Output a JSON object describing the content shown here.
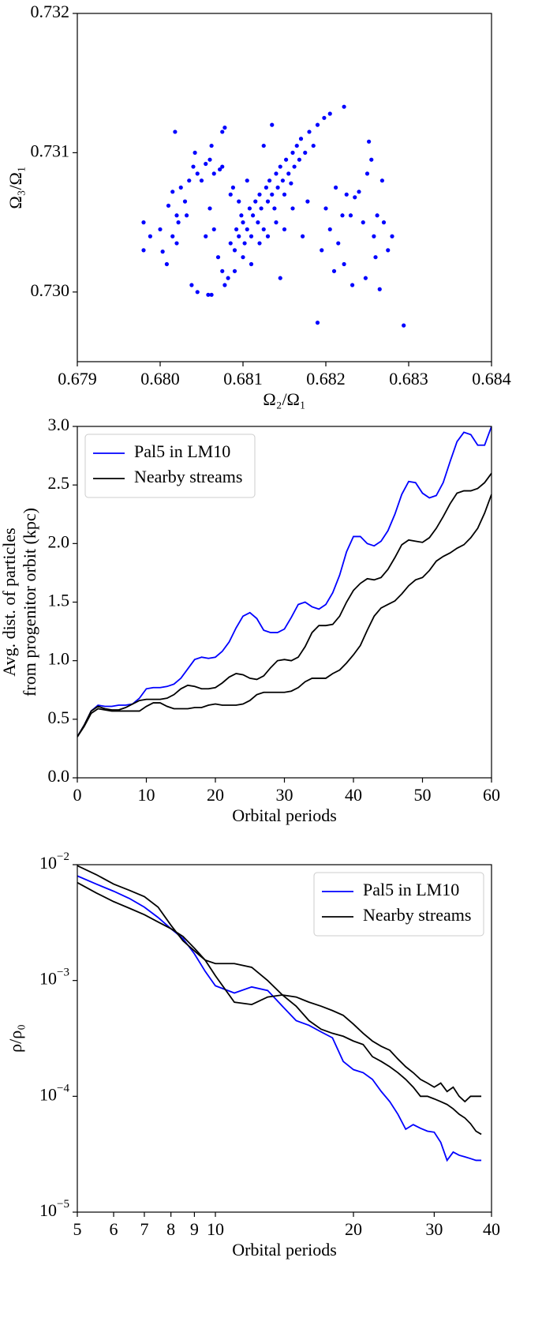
{
  "chart_data": [
    {
      "type": "scatter",
      "xlabel": "Ω₂/Ω₁",
      "ylabel": "Ω₃/Ω₁",
      "color": "#0000ff",
      "xlim": [
        0.679,
        0.684
      ],
      "ylim": [
        0.7295,
        0.732
      ],
      "xticks": [
        0.679,
        {
          "value": 0.68,
          "label": "0.680"
        },
        0.681,
        0.682,
        0.683,
        0.684
      ],
      "yticks": [
        {
          "value": 0.73,
          "label": "0.730"
        },
        0.731,
        0.732
      ],
      "x": [
        0.6798,
        0.6798,
        0.67988,
        0.68003,
        0.68008,
        0.68,
        0.6801,
        0.68015,
        0.68018,
        0.6802,
        0.68022,
        0.68025,
        0.6803,
        0.68035,
        0.6804,
        0.68042,
        0.68045,
        0.6805,
        0.68055,
        0.6806,
        0.68062,
        0.68065,
        0.68072,
        0.68078,
        0.68075,
        0.68038,
        0.68045,
        0.68058,
        0.68062,
        0.68015,
        0.6802,
        0.68032,
        0.6807,
        0.68075,
        0.68078,
        0.68082,
        0.68085,
        0.6809,
        0.68092,
        0.68095,
        0.68098,
        0.681,
        0.68102,
        0.68105,
        0.68108,
        0.6811,
        0.68112,
        0.68115,
        0.68118,
        0.6812,
        0.68122,
        0.68125,
        0.68128,
        0.6813,
        0.68132,
        0.68135,
        0.68138,
        0.6814,
        0.68142,
        0.68145,
        0.68148,
        0.6815,
        0.68152,
        0.68155,
        0.68158,
        0.6816,
        0.68162,
        0.68165,
        0.68168,
        0.6817,
        0.68175,
        0.6818,
        0.68185,
        0.6819,
        0.68198,
        0.68205,
        0.68222,
        0.68095,
        0.68088,
        0.68105,
        0.6812,
        0.6813,
        0.6814,
        0.681,
        0.6811,
        0.68125,
        0.68135,
        0.6815,
        0.6816,
        0.68172,
        0.68178,
        0.68145,
        0.6809,
        0.6806,
        0.68055,
        0.68065,
        0.68085,
        0.68075,
        0.6819,
        0.68195,
        0.682,
        0.68205,
        0.6821,
        0.68215,
        0.6822,
        0.68225,
        0.6823,
        0.68235,
        0.6824,
        0.68245,
        0.68248,
        0.6825,
        0.68252,
        0.68255,
        0.68258,
        0.6826,
        0.68262,
        0.68265,
        0.68268,
        0.6827,
        0.68275,
        0.6828,
        0.68212,
        0.68222,
        0.68232,
        0.68294
      ],
      "y": [
        0.7305,
        0.7303,
        0.7304,
        0.73029,
        0.7302,
        0.73045,
        0.73062,
        0.73072,
        0.73115,
        0.73055,
        0.7305,
        0.73075,
        0.73065,
        0.7308,
        0.7309,
        0.731,
        0.73085,
        0.7308,
        0.73092,
        0.73095,
        0.73105,
        0.73085,
        0.73088,
        0.73118,
        0.73115,
        0.73005,
        0.73,
        0.72998,
        0.72998,
        0.7304,
        0.73035,
        0.73055,
        0.73025,
        0.73015,
        0.73005,
        0.7301,
        0.73035,
        0.7303,
        0.73045,
        0.7304,
        0.73055,
        0.7305,
        0.73035,
        0.73045,
        0.7306,
        0.7304,
        0.73055,
        0.73065,
        0.7305,
        0.7307,
        0.7306,
        0.73045,
        0.73075,
        0.73065,
        0.7308,
        0.7307,
        0.7306,
        0.73085,
        0.73075,
        0.7309,
        0.7308,
        0.7307,
        0.73095,
        0.73085,
        0.73078,
        0.731,
        0.7309,
        0.73105,
        0.73095,
        0.7311,
        0.731,
        0.73115,
        0.73105,
        0.7312,
        0.73125,
        0.73128,
        0.73133,
        0.73065,
        0.73075,
        0.7308,
        0.73035,
        0.7304,
        0.7305,
        0.73025,
        0.7302,
        0.73105,
        0.7312,
        0.73045,
        0.7306,
        0.7304,
        0.73065,
        0.7301,
        0.73015,
        0.7306,
        0.7304,
        0.73045,
        0.7307,
        0.7309,
        0.72978,
        0.7303,
        0.7306,
        0.73045,
        0.73015,
        0.73035,
        0.73055,
        0.7307,
        0.73055,
        0.73068,
        0.73072,
        0.7305,
        0.7301,
        0.73085,
        0.73108,
        0.73095,
        0.7304,
        0.73025,
        0.73055,
        0.73002,
        0.7308,
        0.7305,
        0.7303,
        0.7304,
        0.73075,
        0.7302,
        0.73005,
        0.72976
      ]
    },
    {
      "type": "line",
      "xlabel": "Orbital periods",
      "ylabel": [
        "Avg. dist. of particles",
        "from progenitor orbit (kpc)"
      ],
      "legend": "upper left",
      "xlim": [
        0,
        60
      ],
      "ylim": [
        0,
        3
      ],
      "xticks": [
        0,
        10,
        20,
        30,
        40,
        50,
        60
      ],
      "yticks": [
        {
          "value": 0,
          "label": "0.0"
        },
        0.5,
        {
          "value": 1,
          "label": "1.0"
        },
        1.5,
        {
          "value": 2,
          "label": "2.0"
        },
        2.5,
        {
          "value": 3,
          "label": "3.0"
        }
      ],
      "x": [
        0,
        1,
        2,
        3,
        4,
        5,
        6,
        7,
        8,
        9,
        10,
        11,
        12,
        13,
        14,
        15,
        16,
        17,
        18,
        19,
        20,
        21,
        22,
        23,
        24,
        25,
        26,
        27,
        28,
        29,
        30,
        31,
        32,
        33,
        34,
        35,
        36,
        37,
        38,
        39,
        40,
        41,
        42,
        43,
        44,
        45,
        46,
        47,
        48,
        49,
        50,
        51,
        52,
        53,
        54,
        55,
        56,
        57,
        58,
        59,
        60
      ],
      "series": [
        {
          "name": "Pal5 in LM10",
          "color": "#0000ff",
          "values": [
            0.35,
            0.45,
            0.57,
            0.62,
            0.61,
            0.61,
            0.62,
            0.62,
            0.63,
            0.68,
            0.76,
            0.77,
            0.77,
            0.78,
            0.8,
            0.85,
            0.93,
            1.01,
            1.03,
            1.02,
            1.03,
            1.08,
            1.16,
            1.28,
            1.38,
            1.41,
            1.36,
            1.26,
            1.24,
            1.24,
            1.27,
            1.37,
            1.48,
            1.5,
            1.46,
            1.44,
            1.48,
            1.58,
            1.73,
            1.93,
            2.06,
            2.06,
            2.0,
            1.98,
            2.02,
            2.11,
            2.25,
            2.42,
            2.53,
            2.52,
            2.43,
            2.39,
            2.41,
            2.52,
            2.7,
            2.87,
            2.95,
            2.93,
            2.84,
            2.84,
            3.0
          ]
        },
        {
          "name": "Nearby streams",
          "color": "#000000",
          "values": [
            0.35,
            0.45,
            0.57,
            0.61,
            0.59,
            0.58,
            0.58,
            0.6,
            0.63,
            0.66,
            0.67,
            0.67,
            0.67,
            0.68,
            0.71,
            0.76,
            0.79,
            0.78,
            0.76,
            0.76,
            0.77,
            0.81,
            0.86,
            0.89,
            0.88,
            0.85,
            0.84,
            0.87,
            0.94,
            1.0,
            1.01,
            1.0,
            1.03,
            1.12,
            1.24,
            1.3,
            1.3,
            1.31,
            1.38,
            1.5,
            1.6,
            1.66,
            1.7,
            1.69,
            1.71,
            1.78,
            1.88,
            1.99,
            2.03,
            2.02,
            2.01,
            2.05,
            2.13,
            2.23,
            2.34,
            2.43,
            2.45,
            2.45,
            2.47,
            2.52,
            2.6
          ]
        },
        {
          "color": "#000000",
          "values": [
            0.35,
            0.44,
            0.55,
            0.59,
            0.58,
            0.57,
            0.57,
            0.57,
            0.57,
            0.57,
            0.61,
            0.64,
            0.64,
            0.61,
            0.59,
            0.59,
            0.59,
            0.6,
            0.6,
            0.62,
            0.63,
            0.62,
            0.62,
            0.62,
            0.63,
            0.66,
            0.71,
            0.73,
            0.73,
            0.73,
            0.73,
            0.74,
            0.77,
            0.82,
            0.85,
            0.85,
            0.85,
            0.89,
            0.92,
            0.98,
            1.05,
            1.13,
            1.26,
            1.38,
            1.45,
            1.48,
            1.51,
            1.57,
            1.64,
            1.69,
            1.71,
            1.77,
            1.85,
            1.89,
            1.92,
            1.96,
            1.99,
            2.05,
            2.13,
            2.26,
            2.42
          ]
        }
      ]
    },
    {
      "type": "line",
      "xlabel": "Orbital periods",
      "ylabel": "ρ/ρ₀",
      "legend": "upper right",
      "xscale": "log",
      "yscale": "log",
      "xlim": [
        5,
        40
      ],
      "ylim": [
        1e-05,
        0.01
      ],
      "xticks": [
        5,
        6,
        7,
        8,
        9,
        10,
        20,
        30,
        40
      ],
      "yticks": [
        {
          "value": 1e-05,
          "label": "10",
          "exponent": "−5"
        },
        {
          "value": 0.0001,
          "label": "10",
          "exponent": "−4"
        },
        {
          "value": 0.001,
          "label": "10",
          "exponent": "−3"
        },
        {
          "value": 0.01,
          "label": "10",
          "exponent": "−2"
        }
      ],
      "x": [
        5,
        5.5,
        6,
        6.5,
        7,
        7.5,
        8,
        8.5,
        9,
        9.5,
        10,
        11,
        12,
        13,
        14,
        15,
        16,
        17,
        18,
        19,
        20,
        21,
        22,
        23,
        24,
        25,
        26,
        27,
        28,
        29,
        30,
        31,
        32,
        33,
        34,
        35,
        36,
        37,
        38
      ],
      "series": [
        {
          "name": "Pal5 in LM10",
          "color": "#0000ff",
          "values": [
            0.008,
            0.0068,
            0.0059,
            0.0051,
            0.0043,
            0.0035,
            0.0028,
            0.0023,
            0.0017,
            0.0012,
            0.0009,
            0.00078,
            0.00088,
            0.00082,
            0.0006,
            0.00045,
            0.00041,
            0.00036,
            0.00032,
            0.0002,
            0.00017,
            0.00016,
            0.00014,
            0.00011,
            9e-05,
            7e-05,
            5.2e-05,
            5.7e-05,
            5.3e-05,
            5e-05,
            4.9e-05,
            4e-05,
            2.8e-05,
            3.3e-05,
            3.1e-05,
            3e-05,
            2.9e-05,
            2.8e-05,
            2.8e-05
          ]
        },
        {
          "name": "Nearby streams",
          "color": "#000000",
          "values": [
            0.0098,
            0.0082,
            0.0068,
            0.006,
            0.0053,
            0.0043,
            0.003,
            0.0022,
            0.0018,
            0.0015,
            0.0014,
            0.0014,
            0.0013,
            0.001,
            0.00075,
            0.0006,
            0.00045,
            0.00038,
            0.00035,
            0.00033,
            0.0003,
            0.00028,
            0.00022,
            0.0002,
            0.00018,
            0.00016,
            0.00014,
            0.00012,
            0.0001,
            0.0001,
            9.5e-05,
            9e-05,
            8.5e-05,
            7.8e-05,
            7e-05,
            6.5e-05,
            5.8e-05,
            5e-05,
            4.7e-05
          ]
        },
        {
          "color": "#000000",
          "values": [
            0.007,
            0.0057,
            0.0048,
            0.0042,
            0.0037,
            0.0032,
            0.0028,
            0.0024,
            0.0019,
            0.0015,
            0.0011,
            0.00065,
            0.00062,
            0.00072,
            0.00075,
            0.00072,
            0.00065,
            0.0006,
            0.00055,
            0.0005,
            0.00042,
            0.00035,
            0.0003,
            0.00027,
            0.00025,
            0.00021,
            0.00018,
            0.00016,
            0.00014,
            0.00013,
            0.00012,
            0.00013,
            0.00011,
            0.00012,
            0.0001,
            9e-05,
            0.0001,
            0.0001,
            0.0001
          ]
        }
      ]
    }
  ]
}
